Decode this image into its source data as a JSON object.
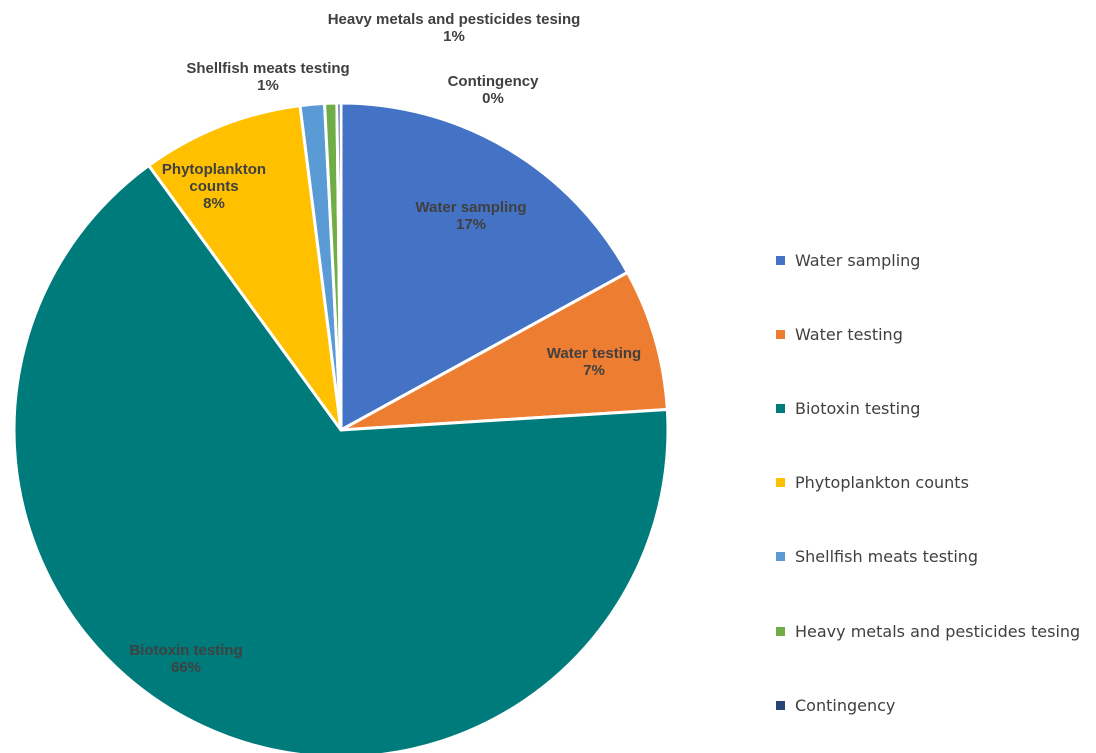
{
  "chart_data": {
    "type": "pie",
    "title": "",
    "slices": [
      {
        "name": "Water sampling",
        "value": 17,
        "label_name": "Water sampling",
        "label_pct": "17%",
        "color": "#4472C4"
      },
      {
        "name": "Water testing",
        "value": 7,
        "label_name": "Water testing",
        "label_pct": "7%",
        "color": "#ED7D31"
      },
      {
        "name": "Biotoxin testing",
        "value": 66,
        "label_name": "Biotoxin testing",
        "label_pct": "66%",
        "color": "#007B7B"
      },
      {
        "name": "Phytoplankton counts",
        "value": 8,
        "label_name": "Phytoplankton\ncounts",
        "label_pct": "8%",
        "color": "#FFC000"
      },
      {
        "name": "Shellfish meats testing",
        "value": 1.2,
        "label_name": "Shellfish meats testing",
        "label_pct": "1%",
        "color": "#5B9BD5"
      },
      {
        "name": "Heavy metals and pesticides tesing",
        "value": 0.6,
        "label_name": "Heavy metals and pesticides tesing",
        "label_pct": "1%",
        "color": "#70AD47"
      },
      {
        "name": "Contingency",
        "value": 0.2,
        "label_name": "Contingency",
        "label_pct": "0%",
        "color": "#264478"
      }
    ],
    "legend_position": "right"
  }
}
